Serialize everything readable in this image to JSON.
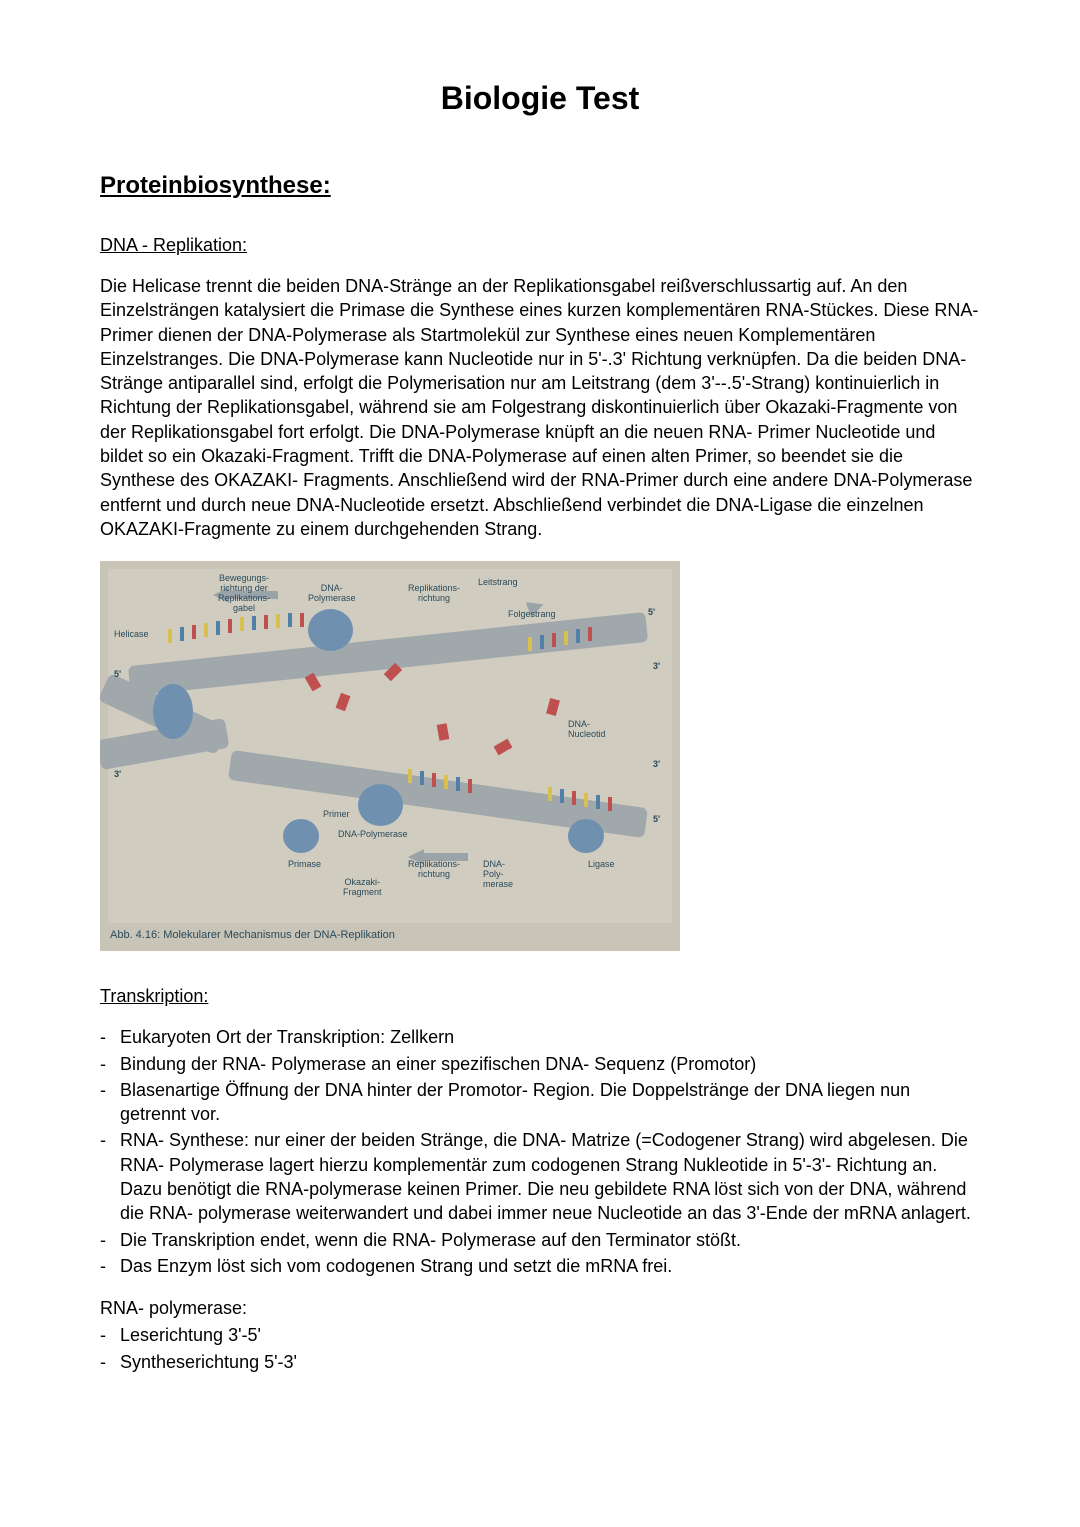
{
  "title": "Biologie Test",
  "section1": {
    "heading": "Proteinbiosynthese:",
    "sub1": "DNA - Replikation:",
    "para1": "Die Helicase trennt die beiden DNA-Stränge an der Replikationsgabel reißverschlussartig auf. An den Einzelsträngen katalysiert die Primase die Synthese eines kurzen komplementären RNA-Stückes. Diese RNA-Primer dienen der DNA-Polymerase als Startmolekül zur Synthese eines neuen Komplementären Einzelstranges. Die DNA-Polymerase kann Nucleotide nur in 5'-.3' Richtung verknüpfen. Da die beiden DNA-Stränge antiparallel sind, erfolgt die Polymerisation nur am Leitstrang (dem 3'--.5'-Strang) kontinuierlich in Richtung der Replikationsgabel, während sie am Folgestrang diskontinuierlich über Okazaki-Fragmente von der Replikationsgabel fort erfolgt. Die DNA-Polymerase knüpft an die neuen RNA- Primer Nucleotide und bildet so ein Okazaki-Fragment. Trifft die DNA-Polymerase auf einen alten Primer, so beendet sie die Synthese des OKAZAKI- Fragments. Anschließend wird der RNA-Primer durch eine andere DNA-Polymerase entfernt und durch neue DNA-Nucleotide ersetzt. Abschließend verbindet die DNA-Ligase die einzelnen OKAZAKI-Fragmente zu einem durchgehenden Strang.",
    "figure": {
      "caption": "Abb. 4.16: Molekularer Mechanismus der DNA-Replikation",
      "labels": {
        "bewegung": "Bewegungs-\nrichtung der\nReplikations-\ngabel",
        "helicase": "Helicase",
        "dnapoly": "DNA-\nPolymerase",
        "replrichtung": "Replikations-\nrichtung",
        "leitstrang": "Leitstrang",
        "folgestrang": "Folgestrang",
        "dnanuc": "DNA-\nNucleotid",
        "primer": "Primer",
        "dnapoly2": "DNA-Polymerase",
        "primase": "Primase",
        "okazaki": "Okazaki-\nFragment",
        "replrichtung2": "Replikations-\nrichtung",
        "dnapoly3": "DNA-\nPoly-\nmerase",
        "ligase": "Ligase"
      },
      "colors": {
        "bg": "#c8c4b8",
        "inner": "#d0ccc0",
        "strand_grey": "#a0a8ac",
        "base_yellow": "#d8c050",
        "base_blue": "#5080a8",
        "base_red": "#c05050",
        "enzyme_blue": "#7090b0",
        "arrow_grey": "#9aa4a8",
        "label_color": "#2a4a5a"
      }
    },
    "sub2": "Transkription:",
    "bullets1": [
      "Eukaryoten Ort der Transkription: Zellkern",
      "Bindung der RNA- Polymerase an einer spezifischen DNA- Sequenz (Promotor)",
      "Blasenartige Öffnung der DNA hinter der Promotor- Region. Die Doppelstränge der DNA liegen nun getrennt vor.",
      "RNA- Synthese: nur einer der beiden Stränge, die DNA- Matrize (=Codogener Strang) wird abgelesen. Die RNA- Polymerase lagert hierzu komplementär zum codogenen Strang Nukleotide in 5'-3'- Richtung an. Dazu benötigt die RNA-polymerase keinen Primer. Die neu gebildete RNA löst sich von der DNA, während die RNA- polymerase weiterwandert und dabei immer neue Nucleotide an das 3'-Ende der mRNA anlagert.",
      "Die Transkription endet, wenn die RNA- Polymerase auf den Terminator stößt.",
      "Das Enzym löst sich vom codogenen Strang und setzt die mRNA frei."
    ],
    "sub3": "RNA- polymerase:",
    "bullets2": [
      "Leserichtung 3'-5'",
      "Syntheserichtung 5'-3'"
    ]
  }
}
